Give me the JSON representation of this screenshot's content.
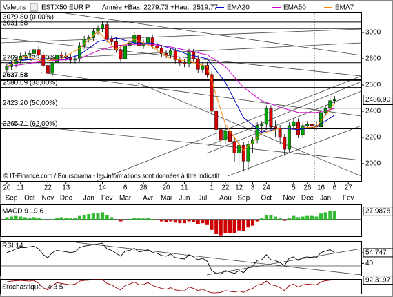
{
  "chart_data": [
    {
      "type": "candlestick",
      "label": "Valeurs",
      "title": "ESTX50 EUR P",
      "subtitle": "Année +Bas: 2279,73 +Haut: 2519,77",
      "note": "© IT-Finance.com / Boursorama - les informations sont données à titre indicatif",
      "up_color": "#00a000",
      "down_color": "#dd0000",
      "open": [
        2720,
        2740,
        2760,
        2790,
        2820,
        2830,
        2840,
        2870,
        2830,
        2750,
        2690,
        2770,
        2830,
        2820,
        2810,
        2790,
        2800,
        2900,
        2950,
        2960,
        3010,
        3030,
        3060,
        2950,
        2930,
        2870,
        2800,
        2900,
        2920,
        2980,
        2900,
        2920,
        2960,
        2900,
        2880,
        2840,
        2830,
        2860,
        2790,
        2770,
        2760,
        2850,
        2800,
        2720,
        2750,
        2680,
        2400,
        2260,
        2180,
        2250,
        2170,
        2080,
        2140,
        2020,
        2150,
        2180,
        2290,
        2300,
        2420,
        2280,
        2270,
        2200,
        2110,
        2290,
        2320,
        2220,
        2290,
        2300,
        2290,
        2280,
        2390,
        2420,
        2480
      ],
      "high": [
        2765,
        2785,
        2815,
        2845,
        2855,
        2865,
        2895,
        2895,
        2855,
        2775,
        2795,
        2855,
        2855,
        2845,
        2835,
        2825,
        2925,
        2975,
        2985,
        3035,
        3055,
        3085,
        3085,
        2975,
        2955,
        2895,
        2925,
        2945,
        3005,
        3005,
        2945,
        2985,
        2985,
        2925,
        2905,
        2865,
        2885,
        2885,
        2815,
        2795,
        2875,
        2875,
        2825,
        2775,
        2775,
        2705,
        2425,
        2300,
        2290,
        2290,
        2195,
        2165,
        2165,
        2175,
        2205,
        2315,
        2325,
        2445,
        2445,
        2330,
        2295,
        2225,
        2315,
        2345,
        2345,
        2315,
        2325,
        2325,
        2325,
        2415,
        2445,
        2505,
        2515
      ],
      "low": [
        2695,
        2715,
        2735,
        2765,
        2795,
        2805,
        2815,
        2805,
        2725,
        2665,
        2665,
        2745,
        2795,
        2785,
        2765,
        2765,
        2775,
        2875,
        2925,
        2935,
        2985,
        3005,
        2925,
        2905,
        2845,
        2775,
        2775,
        2875,
        2895,
        2875,
        2875,
        2895,
        2875,
        2855,
        2815,
        2805,
        2805,
        2765,
        2745,
        2735,
        2735,
        2775,
        2695,
        2695,
        2655,
        2375,
        2150,
        2100,
        2150,
        2140,
        2010,
        1990,
        1940,
        1950,
        2080,
        2155,
        2230,
        2275,
        2255,
        2200,
        2150,
        2060,
        2085,
        2265,
        2195,
        2195,
        2265,
        2265,
        2255,
        2255,
        2365,
        2395,
        2455
      ],
      "close": [
        2740,
        2760,
        2790,
        2820,
        2830,
        2840,
        2870,
        2830,
        2750,
        2690,
        2770,
        2830,
        2820,
        2810,
        2790,
        2800,
        2900,
        2950,
        2960,
        3010,
        3030,
        3060,
        2950,
        2930,
        2870,
        2800,
        2900,
        2920,
        2980,
        2900,
        2920,
        2960,
        2900,
        2880,
        2840,
        2830,
        2860,
        2790,
        2770,
        2760,
        2850,
        2800,
        2720,
        2750,
        2680,
        2400,
        2260,
        2180,
        2250,
        2170,
        2080,
        2140,
        2020,
        2150,
        2180,
        2290,
        2300,
        2420,
        2280,
        2270,
        2200,
        2110,
        2290,
        2320,
        2220,
        2290,
        2300,
        2290,
        2280,
        2390,
        2420,
        2480,
        2486.9
      ],
      "ema_x": [
        0,
        4,
        8,
        12,
        16,
        20,
        24,
        28,
        32,
        36,
        40,
        44,
        48,
        52,
        56,
        60,
        64,
        68,
        72
      ],
      "series": [
        {
          "name": "EMA20",
          "color": "#0000cc",
          "values": [
            2760,
            2790,
            2800,
            2790,
            2830,
            2930,
            2960,
            2920,
            2920,
            2880,
            2830,
            2800,
            2620,
            2350,
            2240,
            2270,
            2260,
            2280,
            2370
          ]
        },
        {
          "name": "EMA50",
          "color": "#cc00cc",
          "values": [
            2740,
            2760,
            2780,
            2790,
            2800,
            2860,
            2900,
            2910,
            2910,
            2890,
            2860,
            2830,
            2740,
            2580,
            2480,
            2430,
            2390,
            2390,
            2420
          ]
        },
        {
          "name": "EMA7",
          "color": "#ff8800",
          "values": [
            2740,
            2820,
            2780,
            2800,
            2880,
            3010,
            2870,
            2950,
            2890,
            2800,
            2780,
            2740,
            2300,
            2100,
            2230,
            2270,
            2270,
            2280,
            2460
          ]
        }
      ],
      "levels": [
        {
          "value": 3079.8,
          "label": "3079,80 (0,00%)"
        },
        {
          "value": 3031.38,
          "label": "3031,38"
        },
        {
          "value": 2769.89,
          "label": "2769,89 (23,60%)"
        },
        {
          "value": 2637.58,
          "label": "2637,58"
        },
        {
          "value": 2580.69,
          "label": "2580,69 (38,00%)"
        },
        {
          "value": 2423.2,
          "label": "2423,20 (50,00%)"
        },
        {
          "value": 2265.71,
          "label": "2265,71 (62,00%)"
        }
      ],
      "price_tag": {
        "value": 2486.9,
        "label": "2486,90"
      },
      "xlim": [
        -1.5,
        78
      ],
      "ylim": [
        1868,
        3153
      ],
      "yticks": [
        2000,
        2200,
        2400,
        2600,
        2800,
        3000
      ],
      "xticks": [
        {
          "value": 0,
          "label": "20"
        },
        {
          "value": 3,
          "label": "11"
        },
        {
          "value": 9,
          "label": "22"
        },
        {
          "value": 13,
          "label": "13"
        },
        {
          "value": 21,
          "label": "14"
        },
        {
          "value": 26,
          "label": "6"
        },
        {
          "value": 30,
          "label": "28"
        },
        {
          "value": 35,
          "label": "20"
        },
        {
          "value": 39,
          "label": "11"
        },
        {
          "value": 45,
          "label": "1"
        },
        {
          "value": 48,
          "label": "22"
        },
        {
          "value": 51,
          "label": "12"
        },
        {
          "value": 54,
          "label": "3"
        },
        {
          "value": 57,
          "label": "24"
        },
        {
          "value": 63,
          "label": "5"
        },
        {
          "value": 66,
          "label": "26"
        },
        {
          "value": 69,
          "label": "16"
        },
        {
          "value": 72,
          "label": "6"
        },
        {
          "value": 75,
          "label": "27"
        }
      ],
      "xticks2": [
        {
          "value": 1,
          "label": "Sep"
        },
        {
          "value": 5,
          "label": "Oct"
        },
        {
          "value": 9,
          "label": "Nov"
        },
        {
          "value": 13,
          "label": "Dec"
        },
        {
          "value": 18,
          "label": "Jan"
        },
        {
          "value": 22,
          "label": "Fev"
        },
        {
          "value": 26,
          "label": "Mar"
        },
        {
          "value": 31,
          "label": "Avr"
        },
        {
          "value": 35,
          "label": "Mai"
        },
        {
          "value": 39,
          "label": "Jun"
        },
        {
          "value": 43,
          "label": "Jul"
        },
        {
          "value": 48,
          "label": "Aou"
        },
        {
          "value": 52,
          "label": "Sep"
        },
        {
          "value": 57,
          "label": "Oct"
        },
        {
          "value": 62,
          "label": "Nov"
        },
        {
          "value": 66,
          "label": "Dec"
        },
        {
          "value": 70,
          "label": "Jan"
        },
        {
          "value": 75,
          "label": "Fev"
        }
      ]
    },
    {
      "type": "bar",
      "label": "MACD 9 19 6",
      "up_color": "#33bb33",
      "down_color": "#cc0000",
      "values": [
        8,
        10,
        12,
        10,
        8,
        6,
        8,
        6,
        2,
        -2,
        2,
        6,
        8,
        6,
        4,
        6,
        12,
        16,
        18,
        20,
        22,
        24,
        14,
        8,
        0,
        -6,
        -2,
        2,
        6,
        4,
        4,
        6,
        2,
        -2,
        -6,
        -8,
        -6,
        -10,
        -12,
        -12,
        -6,
        -8,
        -14,
        -12,
        -18,
        -34,
        -48,
        -52,
        -46,
        -44,
        -44,
        -36,
        -38,
        -26,
        -20,
        -6,
        4,
        16,
        14,
        10,
        4,
        -4,
        6,
        12,
        8,
        10,
        12,
        12,
        10,
        20,
        24,
        28,
        27.9878
      ],
      "ylim": [
        -55,
        50
      ],
      "yticks": [
        {
          "value": 27.9878,
          "label": "27,9878"
        }
      ]
    },
    {
      "type": "line",
      "label": "RSI 14",
      "color": "#000000",
      "values": [
        55,
        57,
        60,
        62,
        62,
        63,
        64,
        60,
        52,
        48,
        55,
        58,
        57,
        56,
        55,
        56,
        62,
        64,
        65,
        66,
        67,
        68,
        60,
        58,
        54,
        50,
        57,
        58,
        61,
        56,
        57,
        59,
        55,
        54,
        51,
        50,
        53,
        48,
        47,
        46,
        52,
        49,
        45,
        47,
        43,
        30,
        26,
        25,
        30,
        28,
        26,
        30,
        27,
        34,
        36,
        44,
        45,
        52,
        45,
        44,
        41,
        37,
        47,
        49,
        44,
        48,
        49,
        48,
        48,
        55,
        57,
        59,
        54.747
      ],
      "ylim": [
        23,
        71
      ],
      "yticks": [
        40,
        {
          "value": 54.747,
          "label": "54,747"
        }
      ]
    },
    {
      "type": "line",
      "label": "Stochastique 14 3 5",
      "color": "#990000",
      "values": [
        80,
        85,
        88,
        90,
        88,
        86,
        90,
        70,
        40,
        25,
        55,
        75,
        70,
        65,
        60,
        65,
        85,
        90,
        92,
        95,
        95,
        96,
        70,
        60,
        40,
        25,
        55,
        65,
        80,
        60,
        62,
        75,
        55,
        45,
        35,
        30,
        40,
        25,
        20,
        18,
        45,
        35,
        20,
        30,
        15,
        5,
        5,
        8,
        20,
        15,
        10,
        18,
        8,
        25,
        35,
        60,
        65,
        85,
        60,
        55,
        40,
        20,
        55,
        65,
        45,
        60,
        65,
        62,
        60,
        80,
        88,
        92,
        92.3197
      ],
      "ylim": [
        0,
        100
      ],
      "yticks": [
        {
          "value": 92.3197,
          "label": "92,3197"
        }
      ]
    }
  ]
}
